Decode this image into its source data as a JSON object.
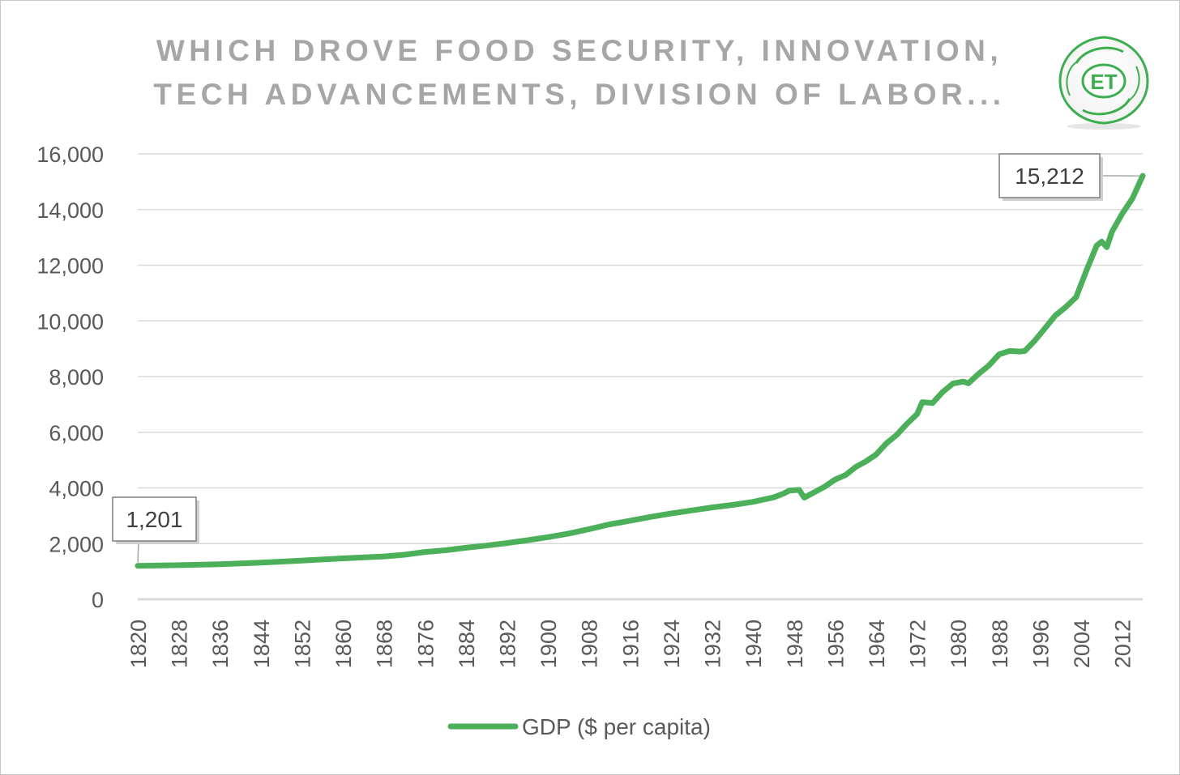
{
  "title": {
    "line1": "WHICH DROVE FOOD SECURITY, INNOVATION,",
    "line2": "TECH ADVANCEMENTS, DIVISION OF LABOR..."
  },
  "logo": {
    "text": "ET",
    "color": "#3dae4f"
  },
  "chart_data": {
    "type": "line",
    "title": "WHICH DROVE FOOD SECURITY, INNOVATION, TECH ADVANCEMENTS, DIVISION OF LABOR...",
    "xlabel": "",
    "ylabel": "",
    "ylim": [
      0,
      16000
    ],
    "xlim": [
      1820,
      2016
    ],
    "y_ticks": [
      0,
      2000,
      4000,
      6000,
      8000,
      10000,
      12000,
      14000,
      16000
    ],
    "y_tick_labels": [
      "0",
      "2,000",
      "4,000",
      "6,000",
      "8,000",
      "10,000",
      "12,000",
      "14,000",
      "16,000"
    ],
    "x_ticks": [
      1820,
      1828,
      1836,
      1844,
      1852,
      1860,
      1868,
      1876,
      1884,
      1892,
      1900,
      1908,
      1916,
      1924,
      1932,
      1940,
      1948,
      1956,
      1964,
      1972,
      1980,
      1988,
      1996,
      2004,
      2012
    ],
    "grid": "horizontal",
    "legend": "bottom",
    "series": [
      {
        "name": "GDP ($ per capita)",
        "color": "#4caf5a",
        "points": [
          [
            1820,
            1201
          ],
          [
            1828,
            1225
          ],
          [
            1836,
            1260
          ],
          [
            1844,
            1315
          ],
          [
            1852,
            1390
          ],
          [
            1860,
            1470
          ],
          [
            1868,
            1540
          ],
          [
            1872,
            1600
          ],
          [
            1876,
            1700
          ],
          [
            1880,
            1760
          ],
          [
            1884,
            1850
          ],
          [
            1888,
            1930
          ],
          [
            1892,
            2020
          ],
          [
            1896,
            2120
          ],
          [
            1900,
            2230
          ],
          [
            1904,
            2360
          ],
          [
            1908,
            2520
          ],
          [
            1912,
            2690
          ],
          [
            1916,
            2820
          ],
          [
            1920,
            2960
          ],
          [
            1924,
            3080
          ],
          [
            1928,
            3190
          ],
          [
            1932,
            3300
          ],
          [
            1936,
            3390
          ],
          [
            1940,
            3500
          ],
          [
            1944,
            3660
          ],
          [
            1946,
            3800
          ],
          [
            1947,
            3900
          ],
          [
            1949,
            3930
          ],
          [
            1950,
            3650
          ],
          [
            1952,
            3850
          ],
          [
            1954,
            4050
          ],
          [
            1956,
            4300
          ],
          [
            1958,
            4460
          ],
          [
            1960,
            4750
          ],
          [
            1962,
            4950
          ],
          [
            1964,
            5200
          ],
          [
            1966,
            5600
          ],
          [
            1968,
            5900
          ],
          [
            1970,
            6300
          ],
          [
            1972,
            6650
          ],
          [
            1973,
            7080
          ],
          [
            1975,
            7050
          ],
          [
            1977,
            7450
          ],
          [
            1979,
            7750
          ],
          [
            1981,
            7820
          ],
          [
            1982,
            7760
          ],
          [
            1984,
            8100
          ],
          [
            1986,
            8400
          ],
          [
            1988,
            8800
          ],
          [
            1990,
            8920
          ],
          [
            1992,
            8900
          ],
          [
            1993,
            8920
          ],
          [
            1995,
            9300
          ],
          [
            1997,
            9750
          ],
          [
            1999,
            10200
          ],
          [
            2001,
            10500
          ],
          [
            2003,
            10850
          ],
          [
            2005,
            11800
          ],
          [
            2007,
            12700
          ],
          [
            2008,
            12850
          ],
          [
            2009,
            12650
          ],
          [
            2010,
            13200
          ],
          [
            2012,
            13850
          ],
          [
            2014,
            14400
          ],
          [
            2016,
            15212
          ]
        ]
      }
    ],
    "annotations": [
      {
        "x": 1820,
        "y": 1201,
        "label": "1,201"
      },
      {
        "x": 2016,
        "y": 15212,
        "label": "15,212"
      }
    ]
  }
}
